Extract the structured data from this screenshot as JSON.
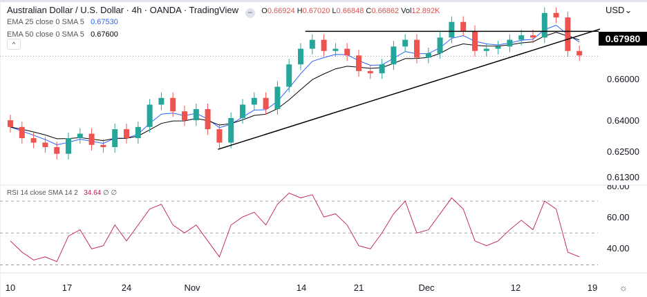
{
  "header": {
    "title": "Australian Dollar / U.S. Dollar · 4h · OANDA · TradingView",
    "ohlc": {
      "o": "0.66924",
      "h": "0.67020",
      "l": "0.66848",
      "c": "0.66862",
      "vol": "12.892K"
    },
    "o_label": "O",
    "h_label": "H",
    "l_label": "L",
    "c_label": "C",
    "vol_label": "Vol",
    "ema25": {
      "label": "EMA 25 close 0 SMA 5",
      "value": "0.67530"
    },
    "ema50": {
      "label": "EMA 50 close 0 SMA 5",
      "value": "0.67600"
    },
    "collapse_icon": "chevron-up-icon",
    "currency": "USD"
  },
  "rsi_legend": {
    "label": "RSI 14 close SMA 14 2",
    "value": "34.64",
    "extra1": "∅",
    "extra2": "∅"
  },
  "price_axis": [
    "0.66000",
    "0.64000",
    "0.62500",
    "0.61300"
  ],
  "price_tag": "0.67980",
  "rsi_axis": [
    "80.00",
    "60.00",
    "40.00"
  ],
  "time_axis": [
    "10",
    "17",
    "24",
    "Nov",
    "14",
    "21",
    "Dec",
    "12",
    "19"
  ],
  "colors": {
    "up": "#26a69a",
    "down": "#ef5350",
    "ema25": "#2962ff",
    "ema50": "#000000",
    "rsi": "#c2185b"
  },
  "chart_data": {
    "type": "candlestick",
    "ylim": [
      0.611,
      0.6938
    ],
    "closes": [
      0.637,
      0.632,
      0.63,
      0.628,
      0.625,
      0.632,
      0.634,
      0.629,
      0.628,
      0.636,
      0.632,
      0.637,
      0.647,
      0.65,
      0.644,
      0.64,
      0.645,
      0.636,
      0.63,
      0.641,
      0.647,
      0.65,
      0.645,
      0.655,
      0.665,
      0.672,
      0.676,
      0.671,
      0.672,
      0.669,
      0.662,
      0.661,
      0.665,
      0.673,
      0.676,
      0.668,
      0.67,
      0.677,
      0.684,
      0.68,
      0.671,
      0.672,
      0.673,
      0.676,
      0.678,
      0.677,
      0.688,
      0.686,
      0.671,
      0.669
    ],
    "rsi": [
      45,
      38,
      33,
      35,
      32,
      48,
      52,
      40,
      42,
      55,
      45,
      55,
      65,
      68,
      55,
      50,
      55,
      45,
      35,
      55,
      60,
      63,
      55,
      68,
      75,
      72,
      74,
      60,
      62,
      55,
      42,
      40,
      50,
      62,
      70,
      50,
      52,
      62,
      72,
      65,
      45,
      42,
      45,
      52,
      58,
      52,
      70,
      65,
      38,
      35
    ],
    "rsi_ylim": [
      25,
      80
    ],
    "rsi_levels": [
      70,
      50,
      30
    ],
    "current_price": 0.66862,
    "horizontal_line": 0.6798,
    "trendline": {
      "from": 0.627,
      "to": 0.6808
    }
  }
}
